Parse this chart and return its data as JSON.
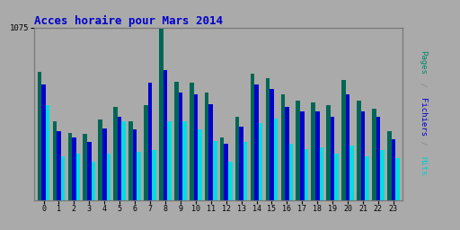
{
  "title": "Acces horaire pour Mars 2014",
  "title_color": "#0000cc",
  "title_fontsize": 9,
  "background_color": "#aaaaaa",
  "bar_width": 0.27,
  "categories": [
    0,
    1,
    2,
    3,
    4,
    5,
    6,
    7,
    8,
    9,
    10,
    11,
    12,
    13,
    14,
    15,
    16,
    17,
    18,
    19,
    20,
    21,
    22,
    23
  ],
  "pages": [
    800,
    490,
    420,
    410,
    500,
    580,
    490,
    590,
    1075,
    740,
    730,
    670,
    390,
    520,
    790,
    760,
    660,
    620,
    610,
    590,
    750,
    620,
    570,
    430
  ],
  "fichiers": [
    720,
    430,
    390,
    365,
    445,
    520,
    440,
    730,
    810,
    670,
    660,
    600,
    350,
    460,
    720,
    690,
    580,
    550,
    550,
    520,
    660,
    550,
    520,
    380
  ],
  "hits": [
    590,
    270,
    290,
    240,
    290,
    490,
    300,
    310,
    490,
    490,
    440,
    370,
    240,
    360,
    480,
    510,
    350,
    320,
    330,
    290,
    340,
    270,
    310,
    260
  ],
  "pages_color": "#006655",
  "fichiers_color": "#0000cc",
  "hits_color": "#00dddd",
  "ylim": [
    0,
    1075
  ],
  "ytick_val": 1075,
  "grid_color": "#999999",
  "font_family": "monospace",
  "right_label_segments": [
    [
      "Pages",
      "#008866"
    ],
    [
      " / ",
      "#888888"
    ],
    [
      "Fichiers",
      "#0000cc"
    ],
    [
      " / ",
      "#888888"
    ],
    [
      "Hits",
      "#00cccc"
    ]
  ]
}
